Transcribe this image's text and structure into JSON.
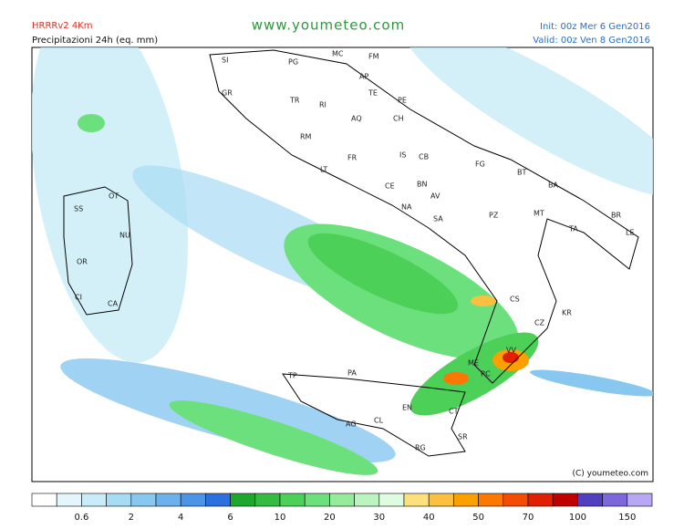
{
  "header": {
    "model": "HRRRv2 4Km",
    "field": "Precipitazioni 24h (eq. mm)",
    "site": "www.youmeteo.com",
    "init": "Init: 00z Mer  6  Gen2016",
    "valid": "Valid: 00z Ven  8  Gen2016"
  },
  "cities": [
    "SI",
    "PG",
    "MC",
    "FM",
    "AP",
    "GR",
    "TR",
    "TE",
    "RI",
    "PE",
    "AQ",
    "CH",
    "RM",
    "IS",
    "CB",
    "FR",
    "LT",
    "FG",
    "BT",
    "CE",
    "BN",
    "AV",
    "BA",
    "OT",
    "NA",
    "SA",
    "PZ",
    "MT",
    "BR",
    "SS",
    "NU",
    "TA",
    "LE",
    "OR",
    "CS",
    "KR",
    "CA",
    "CI",
    "CZ",
    "VV",
    "ME",
    "RC",
    "TP",
    "PA",
    "EN",
    "CT",
    "CL",
    "AG",
    "SR",
    "RG"
  ],
  "copyright": "(C) youmeteo.com",
  "legend": {
    "colors": [
      "#ffffff",
      "#e4f6fc",
      "#c8ecf8",
      "#a8dcf4",
      "#88c8f0",
      "#6cb0ec",
      "#4c94e8",
      "#2c70e0",
      "#1ca82c",
      "#34bc40",
      "#4cd058",
      "#6ce07c",
      "#94ec9c",
      "#bcf4c0",
      "#e0fce0",
      "#fce07c",
      "#fcc040",
      "#fca000",
      "#fc7800",
      "#f44c00",
      "#e02000",
      "#c00000",
      "#5040c0",
      "#7c68dc",
      "#b8a8f4"
    ],
    "labels": [
      0.6,
      2,
      4,
      6,
      10,
      20,
      30,
      40,
      50,
      70,
      100,
      150
    ]
  }
}
